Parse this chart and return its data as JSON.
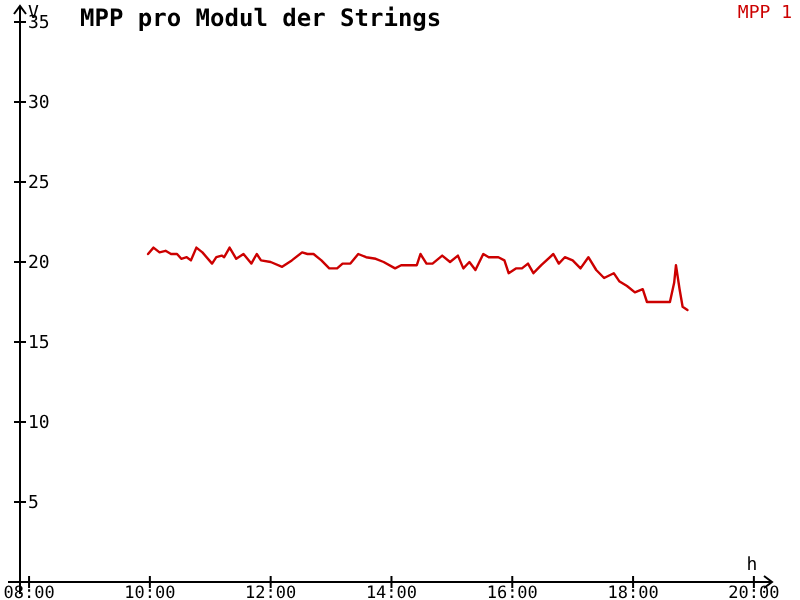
{
  "chart_data": {
    "type": "line",
    "title": "MPP pro Modul der Strings",
    "xlabel": "h",
    "ylabel": "V",
    "xlim": [
      7.85,
      20.3
    ],
    "ylim": [
      0,
      36
    ],
    "xticks": [
      {
        "value": 8,
        "label": "08:00"
      },
      {
        "value": 10,
        "label": "10:00"
      },
      {
        "value": 12,
        "label": "12:00"
      },
      {
        "value": 14,
        "label": "14:00"
      },
      {
        "value": 16,
        "label": "16:00"
      },
      {
        "value": 18,
        "label": "18:00"
      },
      {
        "value": 20,
        "label": "20:00"
      }
    ],
    "yticks": [
      5,
      10,
      15,
      20,
      25,
      30,
      35
    ],
    "grid": false,
    "legend": "top right",
    "marker": "none",
    "line_style": "solid",
    "series": [
      {
        "name": "MPP 1",
        "color": "#cc0000",
        "x": [
          9.97,
          10.06,
          10.16,
          10.26,
          10.35,
          10.45,
          10.52,
          10.61,
          10.68,
          10.77,
          10.87,
          11.03,
          11.1,
          11.19,
          11.23,
          11.32,
          11.43,
          11.55,
          11.68,
          11.77,
          11.84,
          12.0,
          12.19,
          12.35,
          12.52,
          12.61,
          12.71,
          12.84,
          12.97,
          13.1,
          13.19,
          13.32,
          13.45,
          13.58,
          13.74,
          13.87,
          14.06,
          14.16,
          14.42,
          14.48,
          14.58,
          14.68,
          14.84,
          14.97,
          15.1,
          15.19,
          15.29,
          15.39,
          15.52,
          15.61,
          15.77,
          15.87,
          15.94,
          16.06,
          16.16,
          16.26,
          16.35,
          16.48,
          16.68,
          16.77,
          16.87,
          17.0,
          17.13,
          17.26,
          17.39,
          17.52,
          17.68,
          17.77,
          17.9,
          18.03,
          18.16,
          18.23,
          18.61,
          18.68,
          18.71,
          18.77,
          18.82,
          18.9
        ],
        "values": [
          20.5,
          20.9,
          20.6,
          20.7,
          20.5,
          20.5,
          20.2,
          20.3,
          20.1,
          20.9,
          20.6,
          19.9,
          20.3,
          20.4,
          20.3,
          20.9,
          20.2,
          20.5,
          19.9,
          20.5,
          20.1,
          20.0,
          19.7,
          20.1,
          20.6,
          20.5,
          20.5,
          20.1,
          19.6,
          19.6,
          19.9,
          19.9,
          20.5,
          20.3,
          20.2,
          20.0,
          19.6,
          19.8,
          19.8,
          20.5,
          19.9,
          19.9,
          20.4,
          20.0,
          20.4,
          19.6,
          20.0,
          19.5,
          20.5,
          20.3,
          20.3,
          20.1,
          19.3,
          19.6,
          19.6,
          19.9,
          19.3,
          19.8,
          20.5,
          19.9,
          20.3,
          20.1,
          19.6,
          20.3,
          19.5,
          19.0,
          19.3,
          18.8,
          18.5,
          18.1,
          18.3,
          17.5,
          17.5,
          18.7,
          19.8,
          18.3,
          17.2,
          17.0
        ]
      }
    ]
  }
}
